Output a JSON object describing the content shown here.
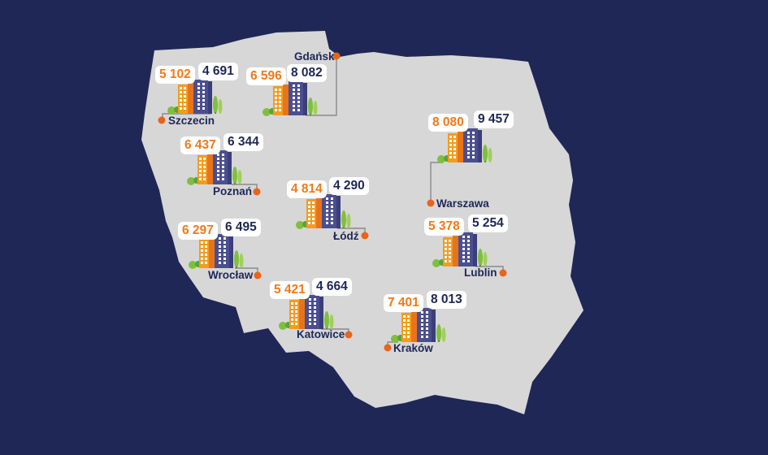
{
  "colors": {
    "background": "#1e2756",
    "land": "#d7d7d7",
    "orange": "#f07a1a",
    "navy": "#1e2756",
    "building_orange": "#f39c1f",
    "building_dark_orange": "#e8741a",
    "building_navy": "#4b4f8f",
    "tree": "#7fbf3f",
    "dot": "#e8641a"
  },
  "cities": [
    {
      "name": "Gdańsk",
      "orange_value": "6 596",
      "navy_value": "8 082",
      "icon": "buildings-icon"
    },
    {
      "name": "Szczecin",
      "orange_value": "5 102",
      "navy_value": "4 691",
      "icon": "buildings-icon"
    },
    {
      "name": "Warszawa",
      "orange_value": "8 080",
      "navy_value": "9 457",
      "icon": "buildings-icon"
    },
    {
      "name": "Poznań",
      "orange_value": "6 437",
      "navy_value": "6 344",
      "icon": "buildings-icon"
    },
    {
      "name": "Łódź",
      "orange_value": "4 814",
      "navy_value": "4 290",
      "icon": "buildings-icon"
    },
    {
      "name": "Wrocław",
      "orange_value": "6 297",
      "navy_value": "6 495",
      "icon": "buildings-icon"
    },
    {
      "name": "Lublin",
      "orange_value": "5 378",
      "navy_value": "5 254",
      "icon": "buildings-icon"
    },
    {
      "name": "Katowice",
      "orange_value": "5 421",
      "navy_value": "4 664",
      "icon": "buildings-icon"
    },
    {
      "name": "Kraków",
      "orange_value": "7 401",
      "navy_value": "8 013",
      "icon": "buildings-icon"
    }
  ]
}
